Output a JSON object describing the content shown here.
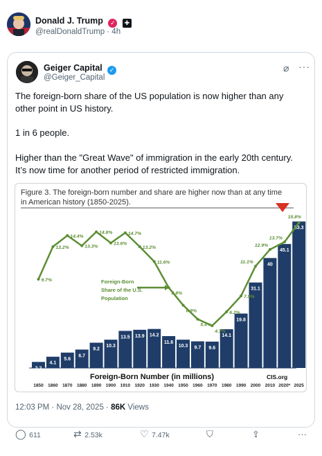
{
  "outer": {
    "name": "Donald J. Trump",
    "handle": "@realDonaldTrump · 4h"
  },
  "quote": {
    "name": "Geiger Capital",
    "handle": "@Geiger_Capital",
    "para1": "The foreign-born share of the US population is now higher than any other point in US history.",
    "para2": "1 in 6 people.",
    "para3": "Higher than the \"Great Wave\" of immigration in the early 20th century. It’s now time for another period of restricted immigration."
  },
  "figure": {
    "title": "Figure 3. The foreign-born number and share are higher now than at any time in American history (1850-2025).",
    "line_label": "Foreign-Born Share of the U.S. Population",
    "bar_label": "Foreign-Born Number (in millions)",
    "source": "CIS.org"
  },
  "chart_data": {
    "type": "bar",
    "categories": [
      "1850",
      "1860",
      "1870",
      "1880",
      "1890",
      "1900",
      "1910",
      "1920",
      "1930",
      "1940",
      "1950",
      "1960",
      "1970",
      "1980",
      "1990",
      "2000",
      "2010",
      "2020*",
      "2025"
    ],
    "series": [
      {
        "name": "Foreign-Born Number (in millions)",
        "values": [
          2.2,
          4.1,
          5.6,
          6.7,
          9.2,
          10.3,
          13.5,
          13.9,
          14.2,
          11.6,
          10.3,
          9.7,
          9.6,
          14.1,
          19.8,
          31.1,
          40,
          45.1,
          53.3
        ],
        "labels": [
          "2.2",
          "4.1",
          "5.6",
          "6.7",
          "9.2",
          "10.3",
          "13.5",
          "13.9",
          "14.2",
          "11.6",
          "10.3",
          "9.7",
          "9.6",
          "14.1",
          "19.8",
          "31.1",
          "40",
          "45.1",
          "53.3"
        ]
      },
      {
        "name": "Foreign-Born Share of the U.S. Population",
        "values": [
          9.7,
          13.2,
          14.4,
          13.3,
          14.8,
          13.6,
          14.7,
          13.2,
          11.6,
          8.8,
          6.9,
          5.4,
          4.7,
          6.2,
          7.9,
          11.1,
          12.9,
          13.7,
          15.8
        ],
        "labels": [
          "9.7%",
          "13.2%",
          "14.4%",
          "13.3%",
          "14.8%",
          "13.6%",
          "14.7%",
          "13.2%",
          "11.6%",
          "8.8%",
          "6.9%",
          "5.4%",
          "4.7%",
          "6.2%",
          "7.9%",
          "11.1%",
          "12.9%",
          "13.7%",
          "15.8%"
        ]
      }
    ],
    "colors": {
      "bars": "#1f3d68",
      "line": "#5c8e34",
      "marker": "#d93025"
    }
  },
  "meta": {
    "time": "12:03 PM · Nov 28, 2025 · ",
    "views_count": "86K",
    "views_label": " Views"
  },
  "actions": {
    "replies": "611",
    "reposts": "2.53k",
    "likes": "7.47k"
  }
}
